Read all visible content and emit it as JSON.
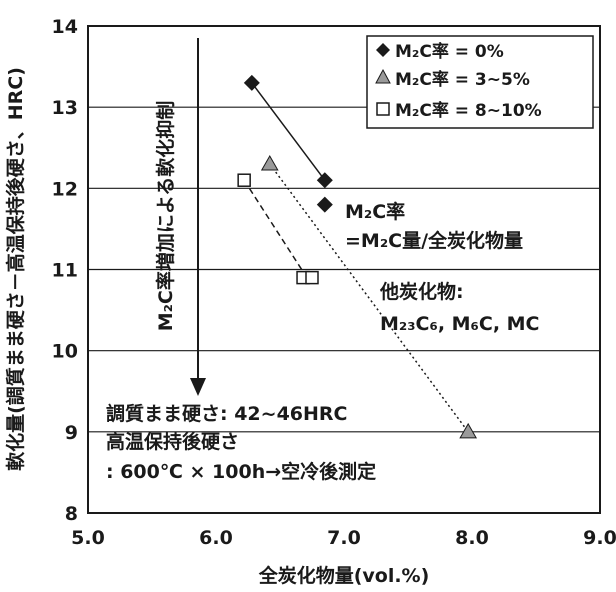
{
  "chart_data": {
    "type": "scatter",
    "xlabel": "全炭化物量(vol.%)",
    "ylabel": "軟化量(調質まま硬さ－高温保持後硬さ、HRC)",
    "xlim": [
      5.0,
      9.0
    ],
    "ylim": [
      8,
      14
    ],
    "xticks": [
      "5.0",
      "6.0",
      "7.0",
      "8.0",
      "9.0"
    ],
    "yticks": [
      "8",
      "9",
      "10",
      "11",
      "12",
      "13",
      "14"
    ],
    "grid": "horizontal",
    "legend_position": "top-right",
    "series": [
      {
        "name": "M₂C率 = 0%",
        "marker": "diamond",
        "fill": "#1a1a1a",
        "points": [
          [
            6.28,
            13.3
          ],
          [
            6.85,
            12.1
          ],
          [
            6.85,
            11.8
          ]
        ]
      },
      {
        "name": "M₂C率 = 3~5%",
        "marker": "triangle",
        "fill": "#9a9a9a",
        "points": [
          [
            6.42,
            12.3
          ],
          [
            7.97,
            9.0
          ]
        ]
      },
      {
        "name": "M₂C率 = 8~10%",
        "marker": "square",
        "fill": "#ffffff",
        "points": [
          [
            6.22,
            12.1
          ],
          [
            6.68,
            10.9
          ],
          [
            6.75,
            10.9
          ]
        ]
      }
    ],
    "trend_lines": [
      {
        "style": "solid",
        "from": [
          6.28,
          13.3
        ],
        "to": [
          6.85,
          12.1
        ]
      },
      {
        "style": "dotted",
        "from": [
          6.42,
          12.3
        ],
        "to": [
          7.97,
          9.0
        ]
      },
      {
        "style": "dashed",
        "from": [
          6.22,
          12.1
        ],
        "to": [
          6.71,
          10.9
        ]
      }
    ],
    "arrow": {
      "x": 5.85,
      "from": 13.8,
      "to": 9.5,
      "label": "M₂C率増加による軟化抑制"
    },
    "annotations": {
      "m2c_ratio_line1": "M₂C率",
      "m2c_ratio_line2": "=M₂C量/全炭化物量",
      "other_carbides_line1": "他炭化物:",
      "other_carbides_line2": "M₂₃C₆, M₆C, MC",
      "conditions_line1": "調質まま硬さ: 42~46HRC",
      "conditions_line2": "高温保持後硬さ",
      "conditions_line3": ": 600℃ × 100h→空冷後測定"
    }
  }
}
